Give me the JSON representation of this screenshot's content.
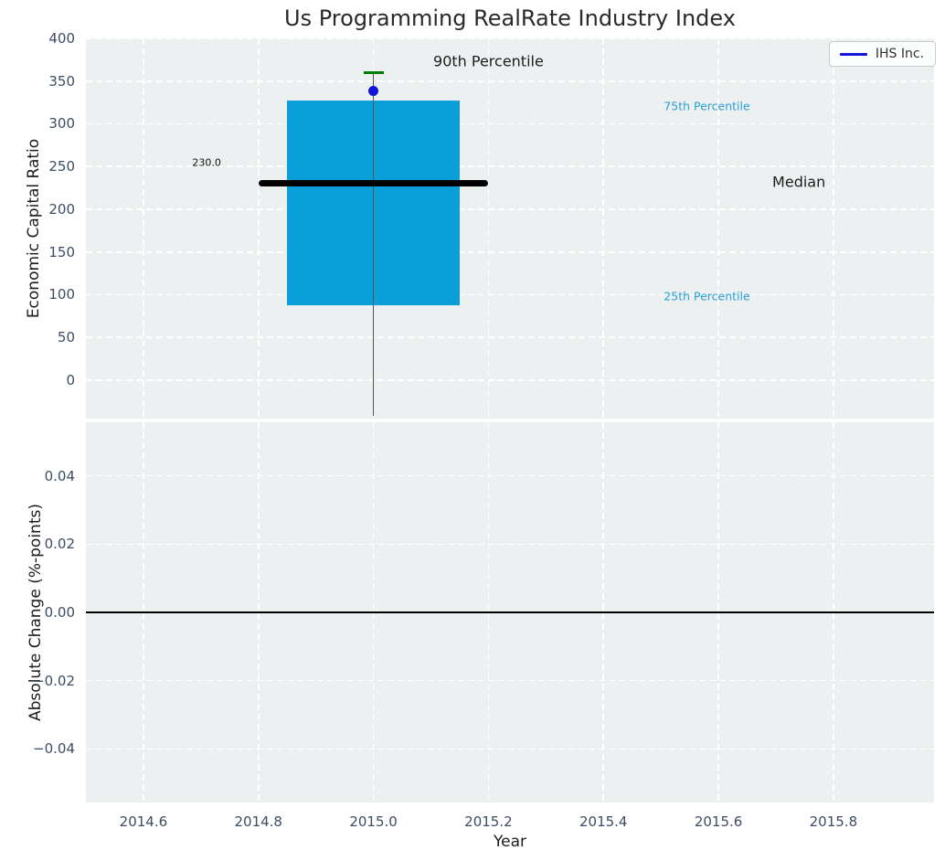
{
  "title": "Us Programming RealRate Industry Index",
  "legend": {
    "label": "IHS Inc."
  },
  "colors": {
    "figure_bg": "#ffffff",
    "axes_bg": "#ecf0f1",
    "grid": "#ffffff",
    "box_fill": "#0a9fd8",
    "median_line": "#000000",
    "whisker": "#555555",
    "percentile_cap": "#008000",
    "company_marker": "#1414d9",
    "zero_line": "#000000",
    "tick_label": "#3e4d63",
    "percentile_text": "#29a1d3",
    "text_dark": "#1c1c1c"
  },
  "chart_data": [
    {
      "type": "box",
      "title": "Us Programming RealRate Industry Index",
      "ylabel": "Economic Capital Ratio",
      "xlim": [
        2014.5,
        2015.975
      ],
      "ylim": [
        -45,
        400
      ],
      "yticks": [
        400,
        350,
        300,
        250,
        200,
        150,
        100,
        50,
        0
      ],
      "ytick_labels": [
        "400",
        "350",
        "300",
        "250",
        "200",
        "150",
        "100",
        "50",
        "0"
      ],
      "xticks": [
        2014.6,
        2014.8,
        2015.0,
        2015.2,
        2015.4,
        2015.6,
        2015.8
      ],
      "grid": "white-dashed",
      "x_center": 2015.0,
      "box": {
        "x_left": 2014.85,
        "x_right": 2015.15,
        "p25": 88,
        "median": 230.0,
        "p75": 327,
        "p90": 360,
        "median_x_left": 2014.8,
        "median_x_right": 2015.2,
        "whisker_low_clipped": true
      },
      "company_point": {
        "label": "IHS Inc.",
        "x": 2015.0,
        "y": 339
      },
      "median_value_label": {
        "text": "230.0",
        "x": 2014.71,
        "y": 254
      },
      "annotations": [
        {
          "text": "90th Percentile",
          "x": 2015.2,
          "y": 373,
          "style": "dark-large"
        },
        {
          "text": "75th Percentile",
          "x": 2015.58,
          "y": 321,
          "style": "cyan-small"
        },
        {
          "text": "Median",
          "x": 2015.74,
          "y": 232,
          "style": "dark-large"
        },
        {
          "text": "25th Percentile",
          "x": 2015.58,
          "y": 98,
          "style": "cyan-small"
        }
      ],
      "legend_position": "upper right"
    },
    {
      "type": "line",
      "ylabel": "Absolute Change (%-points)",
      "xlabel": "Year",
      "xlim": [
        2014.5,
        2015.975
      ],
      "ylim": [
        -0.0557,
        0.0557
      ],
      "yticks": [
        0.04,
        0.02,
        0.0,
        -0.02,
        -0.04
      ],
      "ytick_labels": [
        "0.04",
        "0.02",
        "0.00",
        "−0.02",
        "−0.04"
      ],
      "xticks": [
        2014.6,
        2014.8,
        2015.0,
        2015.2,
        2015.4,
        2015.6,
        2015.8
      ],
      "xtick_labels": [
        "2014.6",
        "2014.8",
        "2015.0",
        "2015.2",
        "2015.4",
        "2015.6",
        "2015.8"
      ],
      "grid": "white-dashed",
      "zero_line": true,
      "series": [
        {
          "name": "IHS Inc.",
          "x": [],
          "y": []
        }
      ]
    }
  ]
}
